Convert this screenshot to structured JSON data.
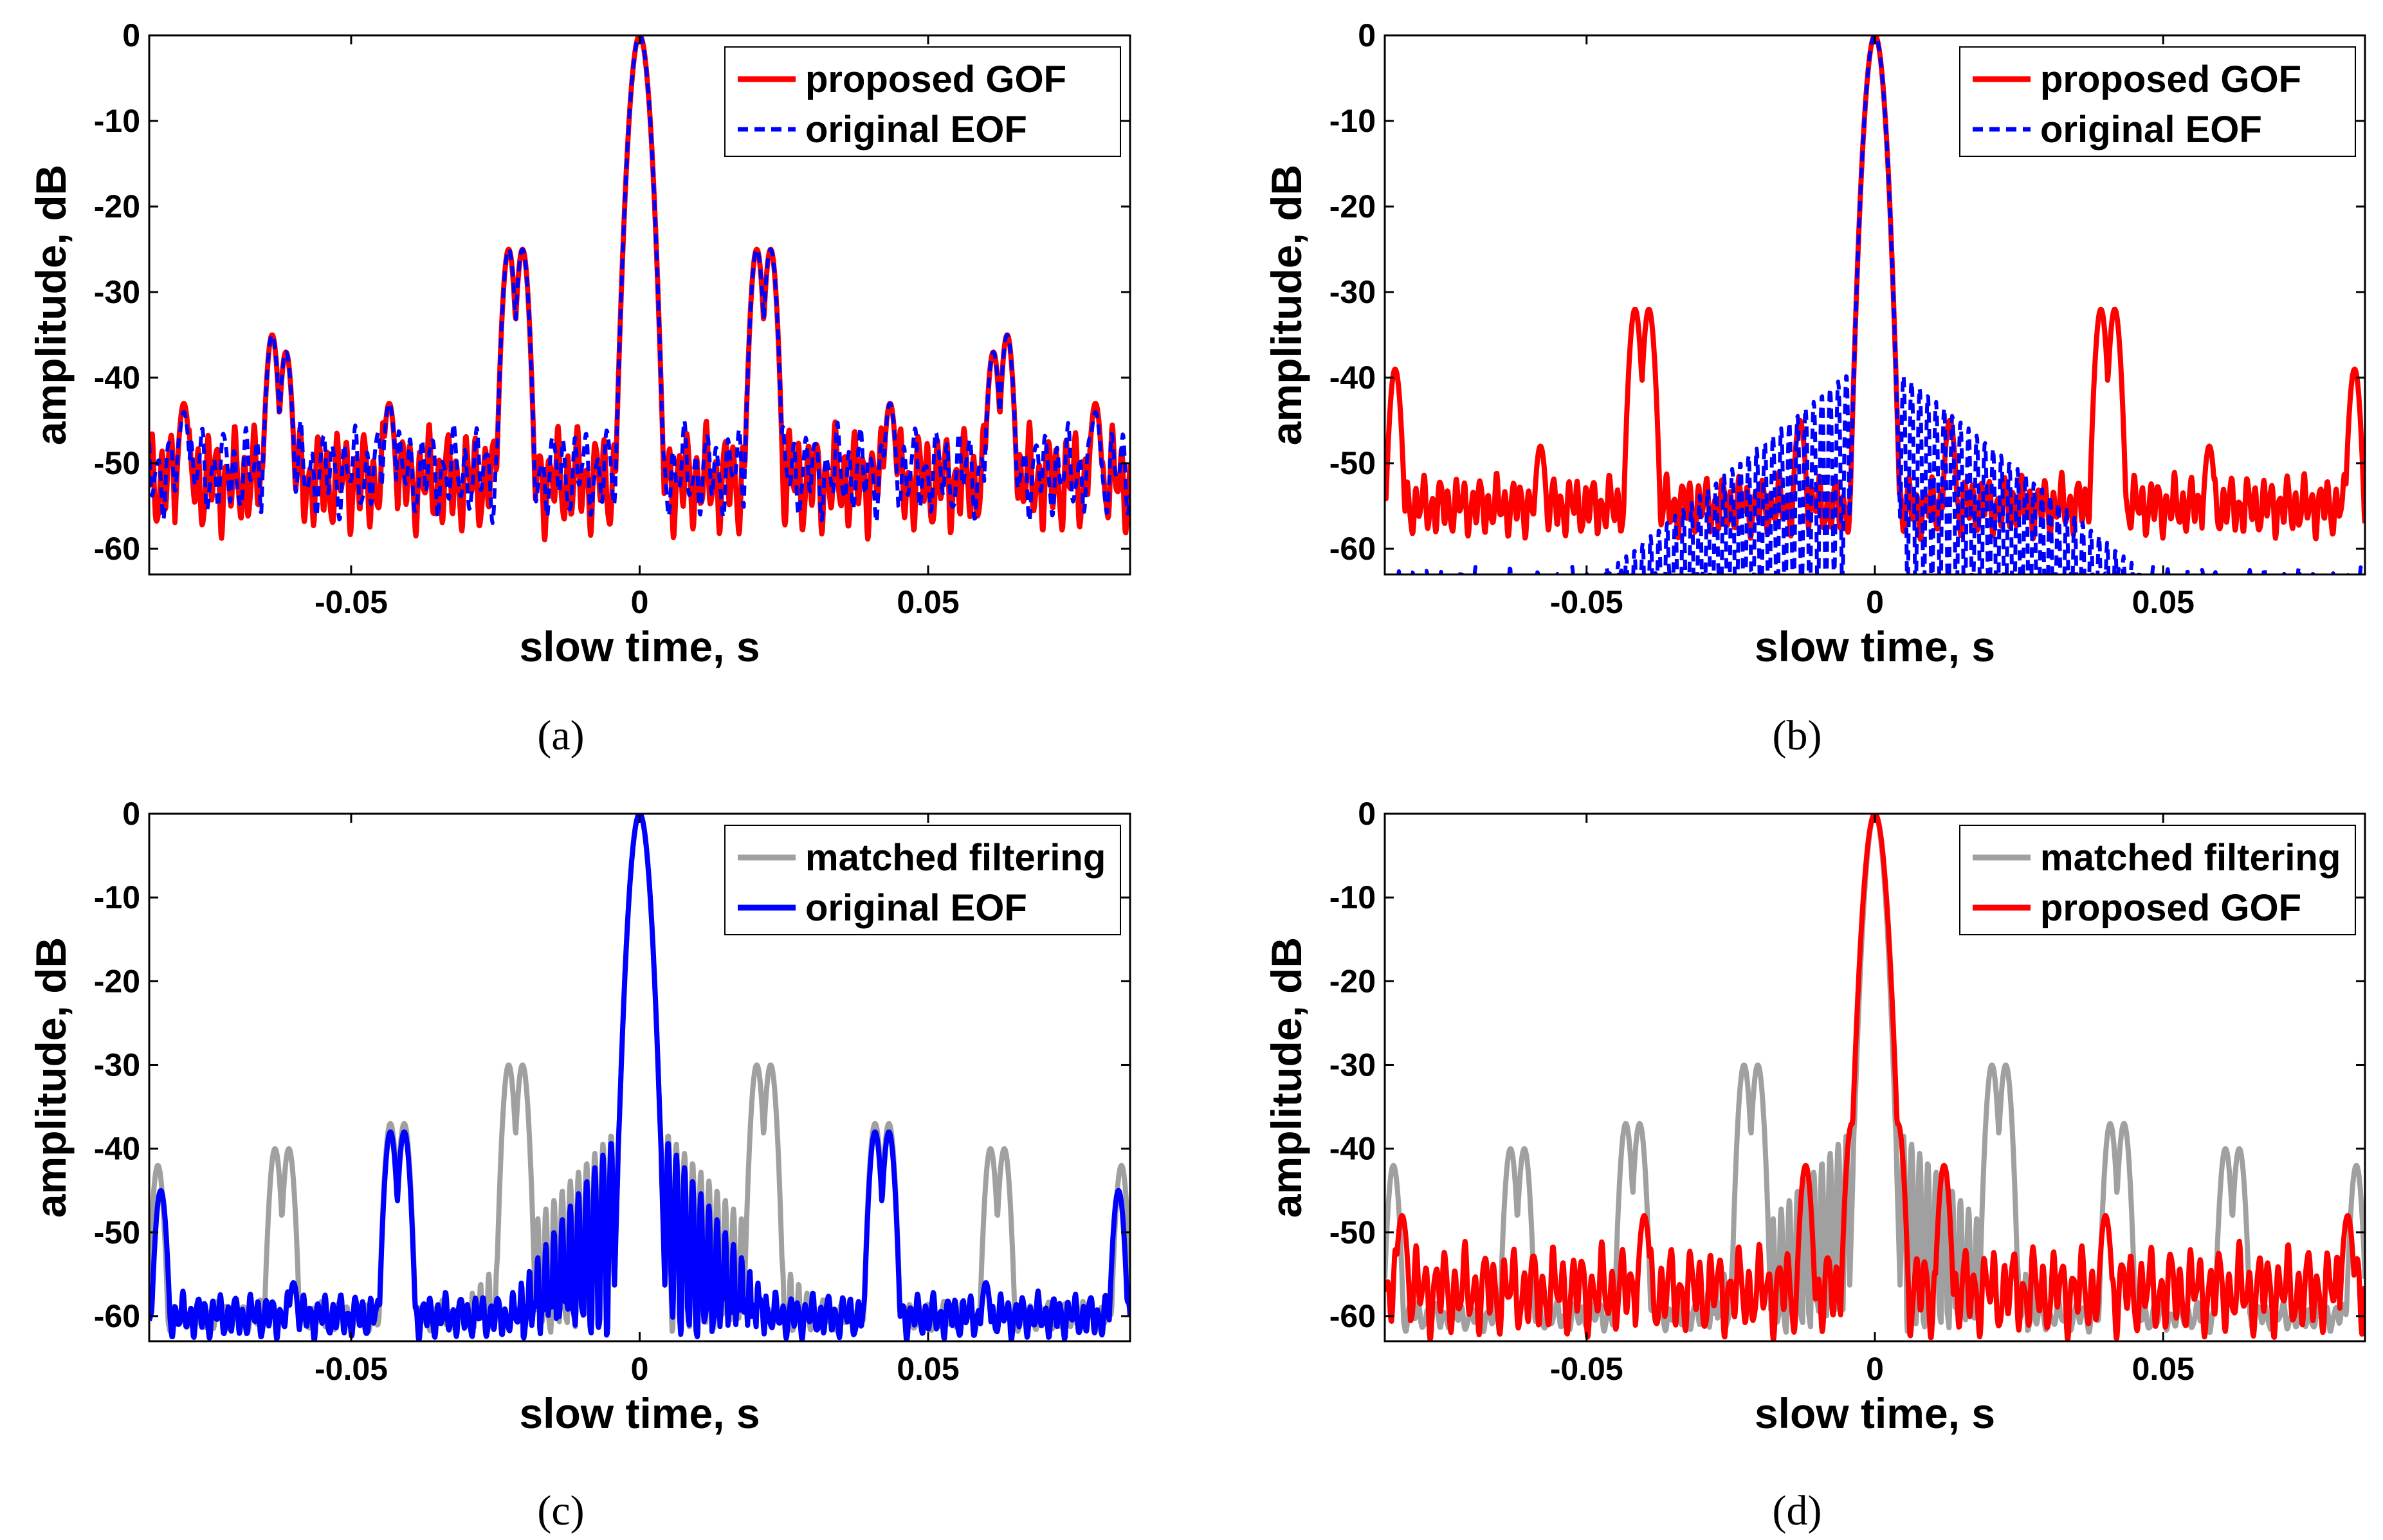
{
  "chart_data": [
    {
      "panel": "a",
      "type": "line",
      "caption": "(a)",
      "xlabel": "slow time, s",
      "ylabel": "amplitude, dB",
      "xlim": [
        -0.085,
        0.085
      ],
      "ylim": [
        -63,
        0
      ],
      "xticks": [
        -0.05,
        0,
        0.05
      ],
      "xtick_labels": [
        "-0.05",
        "0",
        "0.05"
      ],
      "yticks": [
        0,
        -10,
        -20,
        -30,
        -40,
        -50,
        -60
      ],
      "ytick_labels": [
        "0",
        "-10",
        "-20",
        "-30",
        "-40",
        "-50",
        "-60"
      ],
      "legend_position": "top-right",
      "series": [
        {
          "name": "proposed GOF",
          "color": "#ff0000",
          "style": "solid",
          "mainlobe_width": 0.0022,
          "noise_floor": -52,
          "noise_amp": 7,
          "noise_period": 0.0016,
          "noise_phase": 0.3,
          "lobes": [
            [
              -0.0637,
              -35
            ],
            [
              -0.0613,
              -37
            ],
            [
              -0.0434,
              -43
            ],
            [
              -0.0227,
              -25
            ],
            [
              -0.0203,
              -25
            ],
            [
              0.0203,
              -25
            ],
            [
              0.0227,
              -25
            ],
            [
              0.0434,
              -43
            ],
            [
              0.0613,
              -37
            ],
            [
              0.0637,
              -35
            ],
            [
              -0.079,
              -43
            ],
            [
              0.079,
              -43
            ]
          ]
        },
        {
          "name": "original EOF",
          "color": "#0000ff",
          "style": "dashed",
          "mainlobe_width": 0.0022,
          "noise_floor": -51,
          "noise_amp": 6,
          "noise_period": 0.0019,
          "noise_phase": 1.1,
          "lobes": [
            [
              -0.0637,
              -35
            ],
            [
              -0.0613,
              -37
            ],
            [
              -0.0434,
              -43
            ],
            [
              -0.0227,
              -25
            ],
            [
              -0.0203,
              -25
            ],
            [
              0.0203,
              -25
            ],
            [
              0.0227,
              -25
            ],
            [
              0.0434,
              -43
            ],
            [
              0.0613,
              -37
            ],
            [
              0.0637,
              -35
            ],
            [
              -0.079,
              -44
            ],
            [
              0.079,
              -44
            ]
          ]
        }
      ]
    },
    {
      "panel": "b",
      "type": "line",
      "caption": "(b)",
      "xlabel": "slow time, s",
      "ylabel": "amplitude, dB",
      "xlim": [
        -0.085,
        0.085
      ],
      "ylim": [
        -63,
        0
      ],
      "xticks": [
        -0.05,
        0,
        0.05
      ],
      "xtick_labels": [
        "-0.05",
        "0",
        "0.05"
      ],
      "yticks": [
        0,
        -10,
        -20,
        -30,
        -40,
        -50,
        -60
      ],
      "ytick_labels": [
        "0",
        "-10",
        "-20",
        "-30",
        "-40",
        "-50",
        "-60"
      ],
      "legend_position": "top-right",
      "series": [
        {
          "name": "proposed GOF",
          "color": "#ff0000",
          "style": "solid",
          "mainlobe_width": 0.0022,
          "noise_floor": -55,
          "noise_amp": 4,
          "noise_period": 0.0014,
          "noise_phase": 0.7,
          "lobes": [
            [
              -0.0416,
              -32
            ],
            [
              -0.0392,
              -32
            ],
            [
              0.0392,
              -32
            ],
            [
              0.0416,
              -32
            ],
            [
              -0.0832,
              -39
            ],
            [
              0.0832,
              -39
            ],
            [
              -0.058,
              -48
            ],
            [
              0.058,
              -48
            ],
            [
              -0.013,
              -45
            ],
            [
              0.013,
              -45
            ]
          ]
        },
        {
          "name": "original EOF",
          "color": "#0000ff",
          "style": "dashed",
          "mainlobe_width": 0.0022,
          "noise_floor": -65,
          "noise_amp": 3,
          "noise_period": 0.0012,
          "noise_phase": 0.0,
          "lobes": [],
          "sidelobe_decay": {
            "start": -38,
            "end": -63,
            "reach": 0.047
          }
        }
      ]
    },
    {
      "panel": "c",
      "type": "line",
      "caption": "(c)",
      "xlabel": "slow time, s",
      "ylabel": "amplitude, dB",
      "xlim": [
        -0.085,
        0.085
      ],
      "ylim": [
        -63,
        0
      ],
      "xticks": [
        -0.05,
        0,
        0.05
      ],
      "xtick_labels": [
        "-0.05",
        "0",
        "0.05"
      ],
      "yticks": [
        0,
        -10,
        -20,
        -30,
        -40,
        -50,
        -60
      ],
      "ytick_labels": [
        "0",
        "-10",
        "-20",
        "-30",
        "-40",
        "-50",
        "-60"
      ],
      "legend_position": "top-right",
      "series": [
        {
          "name": "matched filtering",
          "color": "#a0a0a0",
          "style": "solid",
          "mainlobe_width": 0.0022,
          "noise_floor": -60,
          "noise_amp": 2,
          "noise_period": 0.0015,
          "noise_phase": 0.2,
          "lobes": [
            [
              -0.0227,
              -30
            ],
            [
              -0.0203,
              -30
            ],
            [
              0.0203,
              -30
            ],
            [
              0.0227,
              -30
            ],
            [
              -0.0432,
              -37
            ],
            [
              -0.0408,
              -37
            ],
            [
              0.0408,
              -37
            ],
            [
              0.0432,
              -37
            ],
            [
              -0.0632,
              -40
            ],
            [
              -0.0608,
              -40
            ],
            [
              0.0608,
              -40
            ],
            [
              0.0632,
              -40
            ],
            [
              -0.0835,
              -42
            ],
            [
              0.0835,
              -42
            ]
          ],
          "sidelobe_decay": {
            "start": -36,
            "end": -58,
            "reach": 0.03
          }
        },
        {
          "name": "original EOF",
          "color": "#0000ff",
          "style": "solid",
          "mainlobe_width": 0.0022,
          "noise_floor": -60,
          "noise_amp": 3,
          "noise_period": 0.0013,
          "noise_phase": 0.9,
          "lobes": [
            [
              -0.0432,
              -38
            ],
            [
              -0.0408,
              -38
            ],
            [
              0.0408,
              -38
            ],
            [
              0.0432,
              -38
            ],
            [
              -0.083,
              -45
            ],
            [
              0.083,
              -45
            ],
            [
              -0.06,
              -56
            ],
            [
              0.06,
              -56
            ]
          ],
          "sidelobe_decay": {
            "start": -36,
            "end": -62,
            "reach": 0.026
          }
        }
      ]
    },
    {
      "panel": "d",
      "type": "line",
      "caption": "(d)",
      "xlabel": "slow time, s",
      "ylabel": "amplitude, dB",
      "xlim": [
        -0.085,
        0.085
      ],
      "ylim": [
        -63,
        0
      ],
      "xticks": [
        -0.05,
        0,
        0.05
      ],
      "xtick_labels": [
        "-0.05",
        "0",
        "0.05"
      ],
      "yticks": [
        0,
        -10,
        -20,
        -30,
        -40,
        -50,
        -60
      ],
      "ytick_labels": [
        "0",
        "-10",
        "-20",
        "-30",
        "-40",
        "-50",
        "-60"
      ],
      "legend_position": "top-right",
      "series": [
        {
          "name": "matched filtering",
          "color": "#a0a0a0",
          "style": "solid",
          "mainlobe_width": 0.0022,
          "noise_floor": -60,
          "noise_amp": 2,
          "noise_period": 0.0015,
          "noise_phase": 0.2,
          "lobes": [
            [
              -0.0227,
              -30
            ],
            [
              -0.0203,
              -30
            ],
            [
              0.0203,
              -30
            ],
            [
              0.0227,
              -30
            ],
            [
              -0.0432,
              -37
            ],
            [
              -0.0408,
              -37
            ],
            [
              0.0408,
              -37
            ],
            [
              0.0432,
              -37
            ],
            [
              -0.0632,
              -40
            ],
            [
              -0.0608,
              -40
            ],
            [
              0.0608,
              -40
            ],
            [
              0.0632,
              -40
            ],
            [
              -0.0835,
              -42
            ],
            [
              0.0835,
              -42
            ]
          ],
          "sidelobe_decay": {
            "start": -36,
            "end": -58,
            "reach": 0.03
          }
        },
        {
          "name": "proposed GOF",
          "color": "#ff0000",
          "style": "solid",
          "mainlobe_width": 0.0024,
          "noise_floor": -57,
          "noise_amp": 6,
          "noise_period": 0.0017,
          "noise_phase": 0.5,
          "lobes": [
            [
              -0.004,
              -37
            ],
            [
              0.004,
              -37
            ],
            [
              -0.012,
              -42
            ],
            [
              0.012,
              -42
            ],
            [
              -0.04,
              -48
            ],
            [
              0.04,
              -48
            ],
            [
              -0.082,
              -48
            ],
            [
              0.082,
              -48
            ]
          ]
        }
      ]
    }
  ]
}
